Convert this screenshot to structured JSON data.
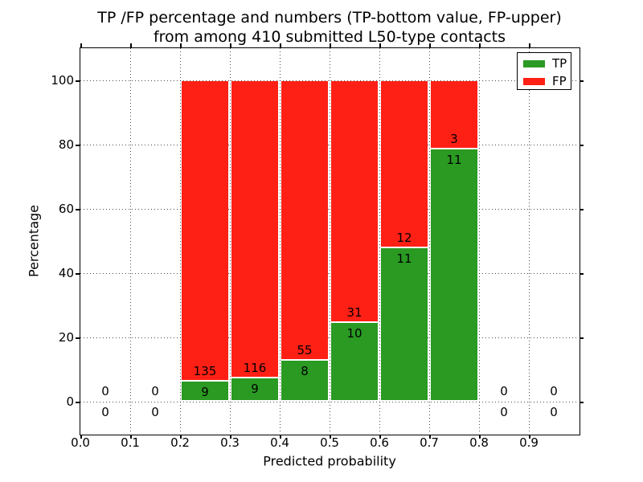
{
  "figure": {
    "title_line1": "TP /FP percentage and numbers (TP-bottom value, FP-upper)",
    "title_line2": "from among 410 submitted L50-type contacts"
  },
  "chart_data": {
    "type": "bar",
    "stacked": true,
    "title": "TP /FP percentage and numbers (TP-bottom value, FP-upper) from among 410 submitted L50-type contacts",
    "xlabel": "Predicted probability",
    "ylabel": "Percentage",
    "xlim": [
      0.0,
      1.0
    ],
    "ylim": [
      -10,
      110
    ],
    "grid": "dotted",
    "legend_position": "upper right",
    "xticks": [
      {
        "v": 0.0,
        "label": "0.0"
      },
      {
        "v": 0.1,
        "label": "0.1"
      },
      {
        "v": 0.2,
        "label": "0.2"
      },
      {
        "v": 0.3,
        "label": "0.3"
      },
      {
        "v": 0.4,
        "label": "0.4"
      },
      {
        "v": 0.5,
        "label": "0.5"
      },
      {
        "v": 0.6,
        "label": "0.6"
      },
      {
        "v": 0.7,
        "label": "0.7"
      },
      {
        "v": 0.8,
        "label": "0.8"
      },
      {
        "v": 0.9,
        "label": "0.9"
      }
    ],
    "yticks": [
      {
        "v": 0,
        "label": "0"
      },
      {
        "v": 20,
        "label": "20"
      },
      {
        "v": 40,
        "label": "40"
      },
      {
        "v": 60,
        "label": "60"
      },
      {
        "v": 80,
        "label": "80"
      },
      {
        "v": 100,
        "label": "100"
      }
    ],
    "series": [
      {
        "name": "TP",
        "color": "#2a9a22"
      },
      {
        "name": "FP",
        "color": "#ff2015"
      }
    ],
    "bins": [
      {
        "x0": 0.0,
        "x1": 0.1,
        "tp": 0,
        "fp": 0,
        "tp_pct": 0,
        "fp_pct": 0
      },
      {
        "x0": 0.1,
        "x1": 0.2,
        "tp": 0,
        "fp": 0,
        "tp_pct": 0,
        "fp_pct": 0
      },
      {
        "x0": 0.2,
        "x1": 0.3,
        "tp": 9,
        "fp": 135,
        "tp_pct": 6.25,
        "fp_pct": 93.75
      },
      {
        "x0": 0.3,
        "x1": 0.4,
        "tp": 9,
        "fp": 116,
        "tp_pct": 7.2,
        "fp_pct": 92.8
      },
      {
        "x0": 0.4,
        "x1": 0.5,
        "tp": 8,
        "fp": 55,
        "tp_pct": 12.7,
        "fp_pct": 87.3
      },
      {
        "x0": 0.5,
        "x1": 0.6,
        "tp": 10,
        "fp": 31,
        "tp_pct": 24.39,
        "fp_pct": 75.61
      },
      {
        "x0": 0.6,
        "x1": 0.7,
        "tp": 11,
        "fp": 12,
        "tp_pct": 47.83,
        "fp_pct": 52.17
      },
      {
        "x0": 0.7,
        "x1": 0.8,
        "tp": 11,
        "fp": 3,
        "tp_pct": 78.57,
        "fp_pct": 21.43
      },
      {
        "x0": 0.8,
        "x1": 0.9,
        "tp": 0,
        "fp": 0,
        "tp_pct": 0,
        "fp_pct": 0
      },
      {
        "x0": 0.9,
        "x1": 1.0,
        "tp": 0,
        "fp": 0,
        "tp_pct": 0,
        "fp_pct": 0
      }
    ],
    "legend": [
      {
        "label": "TP",
        "color": "#2a9a22"
      },
      {
        "label": "FP",
        "color": "#ff2015"
      }
    ]
  }
}
